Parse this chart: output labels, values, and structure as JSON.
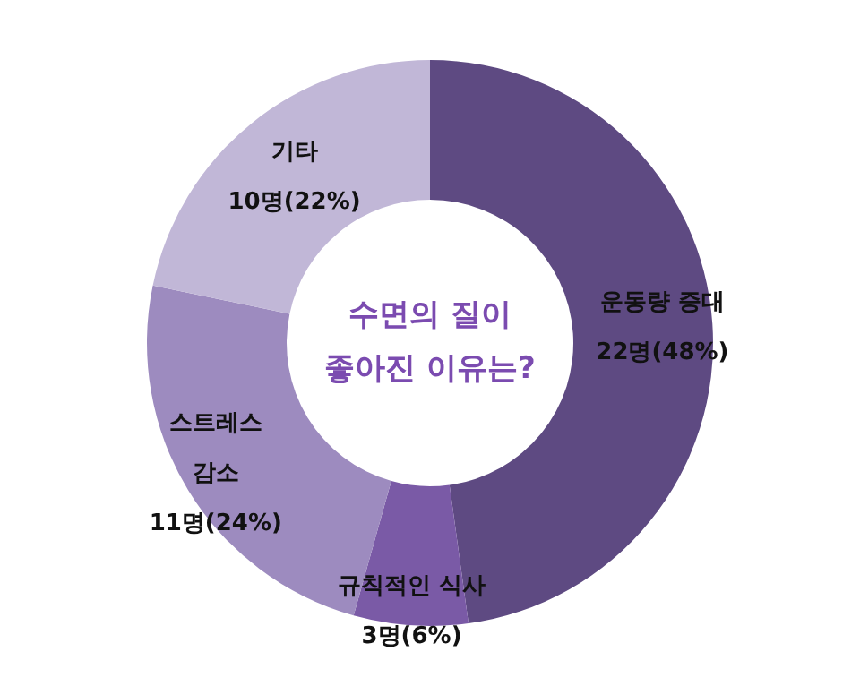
{
  "chart_data": {
    "type": "donut",
    "title": "수면의 질이\n좋아진 이유는?",
    "categories": [
      "운동량 증대",
      "규칙적인 식사",
      "스트레스\n감소",
      "기타"
    ],
    "values": [
      22,
      3,
      11,
      10
    ],
    "value_labels": [
      "22명(48%)",
      "3명(6%)",
      "11명(24%)",
      "10명(22%)"
    ],
    "colors": [
      "#5e4a82",
      "#7a5aa6",
      "#9d8bbf",
      "#c1b7d7"
    ]
  }
}
